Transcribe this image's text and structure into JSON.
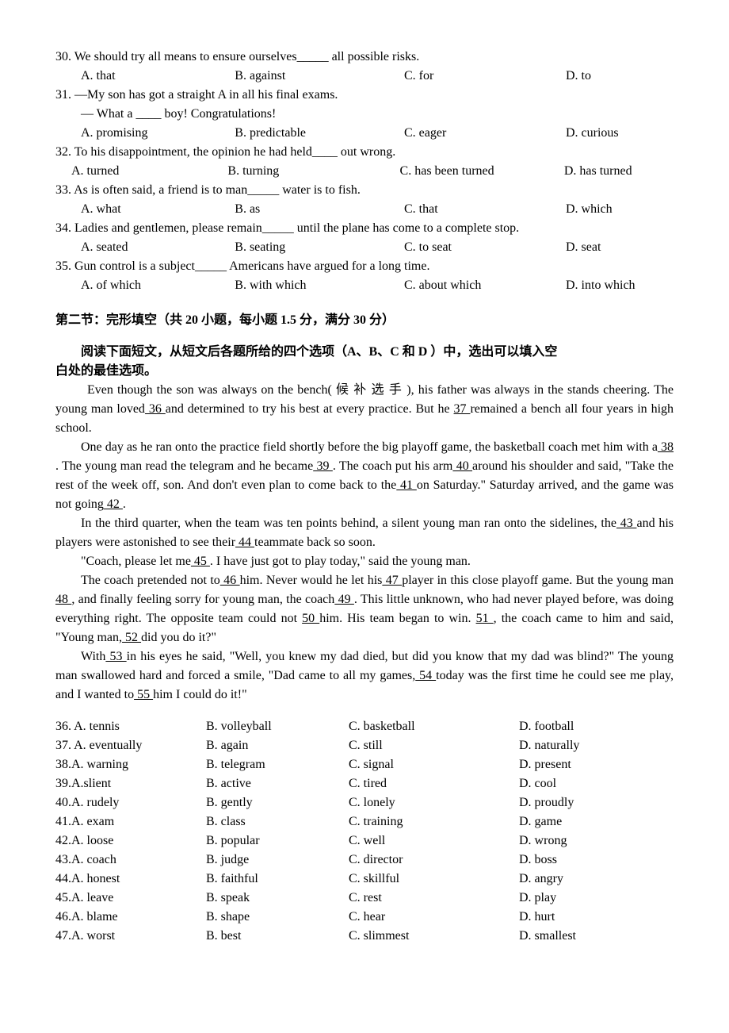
{
  "questions": [
    {
      "num": "30",
      "stem_a": "30. We should try all means to ensure ourselves",
      "blank": "_____",
      "stem_b": " all possible risks.",
      "opts": {
        "a": "A. that",
        "b": "B. against",
        "c": "C. for",
        "d": "D. to"
      }
    },
    {
      "num": "31",
      "line1": "31. —My son has got a straight A in all his final exams.",
      "line2_a": "— What a ",
      "blank": "____",
      "line2_b": " boy! Congratulations!",
      "opts": {
        "a": "A. promising",
        "b": "B. predictable",
        "c": "C. eager",
        "d": "D. curious"
      }
    },
    {
      "num": "32",
      "stem_a": "32. To his disappointment, the opinion he had held",
      "blank": "____",
      "stem_b": " out wrong.",
      "opts": {
        "a": "A. turned",
        "b": "B.   turning",
        "c": "C. has been turned",
        "d": "D. has turned"
      }
    },
    {
      "num": "33",
      "stem_a": "33. As is often said, a friend is to man",
      "blank": "_____",
      "stem_b": " water is to fish.",
      "opts": {
        "a": "A. what",
        "b": "B. as",
        "c": "C. that",
        "d": "D. which"
      }
    },
    {
      "num": "34",
      "stem_a": "34. Ladies and gentlemen, please remain",
      "blank": "_____",
      "stem_b": " until the plane has come to a complete stop.",
      "opts": {
        "a": "A. seated",
        "b": "B. seating",
        "c": "C. to seat",
        "d": "D. seat"
      }
    },
    {
      "num": "35",
      "stem_a": "35. Gun control is a subject",
      "blank": "_____",
      "stem_b": " Americans have argued for a long time.",
      "opts": {
        "a": "A. of which",
        "b": "B. with which",
        "c": "C. about which",
        "d": "D. into which"
      }
    }
  ],
  "section": {
    "title": "第二节：完形填空（共 20 小题，每小题 1.5 分，满分 30 分）",
    "instruction_a": "阅读下面短文，从短文后各题所给的四个选项（A、B、C 和 D ）中，选出可以填入空",
    "instruction_b": "白处的最佳选项。"
  },
  "passage": {
    "p1_a": "Even though the son was always on the bench( 候 补 选 手 ), his father was always in the stands cheering. The young man loved",
    "b36": " 36 ",
    "p1_b": " and determined to try his best at every practice. But he ",
    "b37": "37   ",
    "p1_c": " remained a bench all four years in high school.",
    "p2_a": "One day as he ran onto the practice field shortly before the big playoff game, the basketball coach met him with a",
    "b38": " 38 ",
    "p2_b": ". The young man read the telegram and he became",
    "b39": " 39 ",
    "p2_c": ". The coach put his arm",
    "b40": " 40   ",
    "p2_d": " around his shoulder and said, \"Take the rest of the week off, son. And don't even plan to come back to the",
    "b41": " 41 ",
    "p2_e": "  on Saturday.\" Saturday arrived, and the game was not going",
    "b42": " 42 ",
    "p2_f": ".",
    "p3_a": "In the third quarter, when the team was ten points behind, a silent young man ran onto the sidelines, the",
    "b43": " 43 ",
    "p3_b": "  and his players were astonished to see their",
    "b44": " 44 ",
    "p3_c": "  teammate back so soon.",
    "p4_a": "\"Coach, please let me",
    "b45": " 45 ",
    "p4_b": ". I have just got to play today,\" said the young man.",
    "p5_a": "The coach pretended not to",
    "b46": " 46 ",
    "p5_b": "  him. Never would he let his",
    "b47": " 47 ",
    "p5_c": "  player in this close playoff game. But the young man",
    "b48": " 48 ",
    "p5_d": ", and finally feeling sorry for young man, the coach",
    "b49": " 49 ",
    "p5_e": ". This little unknown, who had never played before, was doing everything right. The opposite team could not ",
    "b50": "50   ",
    "p5_f": "him. His team began to win.  ",
    "b51": " 51 ",
    "p5_g": ", the coach came to him and said, \"Young man,",
    "b52": " 52 ",
    "p5_h": "  did you do it?\"",
    "p6_a": "With",
    "b53": " 53 ",
    "p6_b": "  in his eyes he said, \"Well, you knew my dad died, but did you know that my dad was blind?\" The young man swallowed hard and forced a smile, \"Dad came to all my games,",
    "b54": " 54 ",
    "p6_c": " today was the first time he could see me play, and I wanted to",
    "b55": " 55 ",
    "p6_d": "  him I could do it!\""
  },
  "cloze_opts": [
    {
      "n": "36. A. tennis",
      "b": "B. volleyball",
      "c": "C. basketball",
      "d": "D. football"
    },
    {
      "n": "37. A. eventually",
      "b": "B. again",
      "c": "C. still",
      "d": "D. naturally"
    },
    {
      "n": "38.A. warning",
      "b": "B. telegram",
      "c": "C. signal",
      "d": "D. present"
    },
    {
      "n": "39.A.slient",
      "b": "B. active",
      "c": "C. tired",
      "d": "D. cool"
    },
    {
      "n": "40.A. rudely",
      "b": " B. gently",
      "c": "C. lonely",
      "d": " D. proudly"
    },
    {
      "n": "41.A. exam",
      "b": "B. class",
      "c": "C. training",
      "d": "D. game"
    },
    {
      "n": "42.A. loose",
      "b": "B. popular",
      "c": "C. well",
      "d": "D. wrong"
    },
    {
      "n": "43.A. coach",
      "b": "B. judge",
      "c": "C. director",
      "d": "D. boss"
    },
    {
      "n": "44.A. honest",
      "b": "B. faithful",
      "c": "C. skillful",
      "d": "D. angry"
    },
    {
      "n": "45.A. leave",
      "b": "B. speak",
      "c": "C. rest",
      "d": "D. play"
    },
    {
      "n": "46.A. blame",
      "b": "B. shape",
      "c": "C. hear",
      "d": "D. hurt"
    },
    {
      "n": "47.A. worst",
      "b": "B. best",
      "c": "C. slimmest",
      "d": "D. smallest"
    }
  ]
}
